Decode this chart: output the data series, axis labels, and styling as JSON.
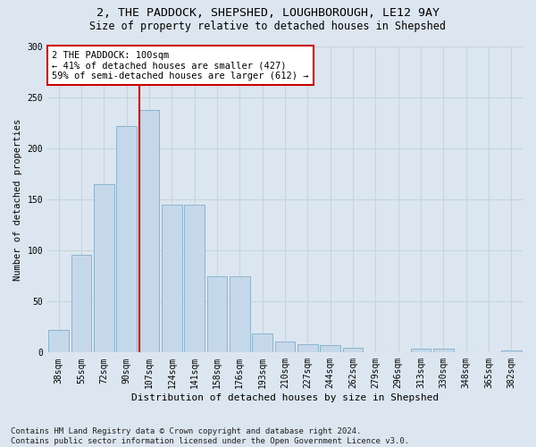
{
  "title1": "2, THE PADDOCK, SHEPSHED, LOUGHBOROUGH, LE12 9AY",
  "title2": "Size of property relative to detached houses in Shepshed",
  "xlabel": "Distribution of detached houses by size in Shepshed",
  "ylabel": "Number of detached properties",
  "categories": [
    "38sqm",
    "55sqm",
    "72sqm",
    "90sqm",
    "107sqm",
    "124sqm",
    "141sqm",
    "158sqm",
    "176sqm",
    "193sqm",
    "210sqm",
    "227sqm",
    "244sqm",
    "262sqm",
    "279sqm",
    "296sqm",
    "313sqm",
    "330sqm",
    "348sqm",
    "365sqm",
    "382sqm"
  ],
  "values": [
    22,
    96,
    165,
    222,
    237,
    145,
    145,
    75,
    75,
    19,
    11,
    8,
    7,
    5,
    0,
    0,
    4,
    4,
    0,
    0,
    2
  ],
  "bar_color": "#c5d8ea",
  "bar_edge_color": "#8ab4ce",
  "grid_color": "#c8d4dc",
  "background_color": "#dce6f0",
  "vline_index": 4,
  "vline_color": "#cc0000",
  "annotation_line1": "2 THE PADDOCK: 100sqm",
  "annotation_line2": "← 41% of detached houses are smaller (427)",
  "annotation_line3": "59% of semi-detached houses are larger (612) →",
  "annotation_box_color": "#ffffff",
  "annotation_box_edge": "#cc0000",
  "ylim": [
    0,
    300
  ],
  "yticks": [
    0,
    50,
    100,
    150,
    200,
    250,
    300
  ],
  "footer_line1": "Contains HM Land Registry data © Crown copyright and database right 2024.",
  "footer_line2": "Contains public sector information licensed under the Open Government Licence v3.0.",
  "title1_fontsize": 9.5,
  "title2_fontsize": 8.5,
  "xlabel_fontsize": 8,
  "ylabel_fontsize": 7.5,
  "tick_fontsize": 7,
  "annotation_fontsize": 7.5,
  "footer_fontsize": 6.5
}
